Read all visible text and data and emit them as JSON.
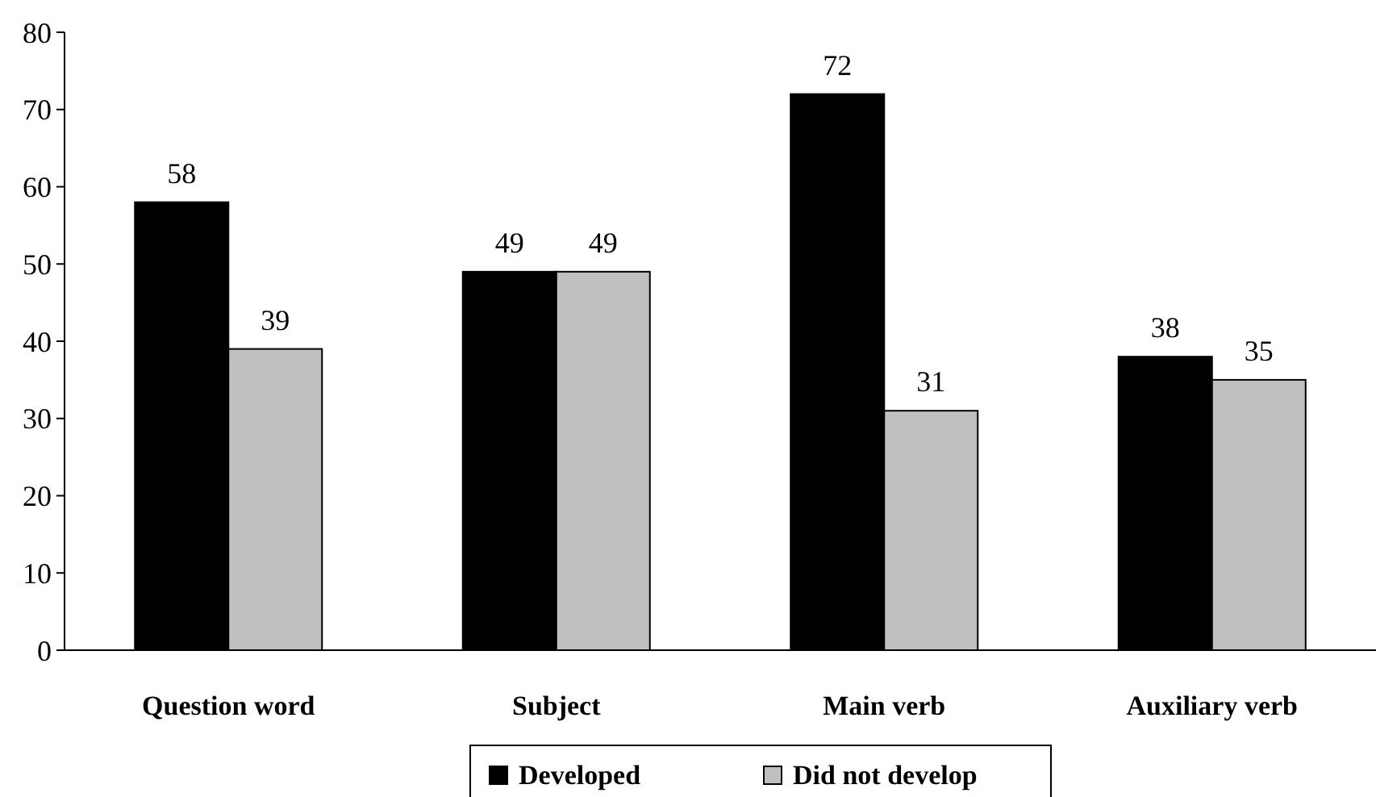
{
  "chart_data": {
    "type": "bar",
    "categories": [
      "Question word",
      "Subject",
      "Main verb",
      "Auxiliary verb"
    ],
    "series": [
      {
        "name": "Developed",
        "color": "#000000",
        "values": [
          58,
          49,
          72,
          38
        ]
      },
      {
        "name": "Did not develop",
        "color": "#c0c0c0",
        "values": [
          39,
          49,
          31,
          35
        ]
      }
    ],
    "ylim": [
      0,
      80
    ],
    "yticks": [
      0,
      10,
      20,
      30,
      40,
      50,
      60,
      70,
      80
    ],
    "grid": false,
    "legend": "bottom",
    "data_labels": true
  }
}
